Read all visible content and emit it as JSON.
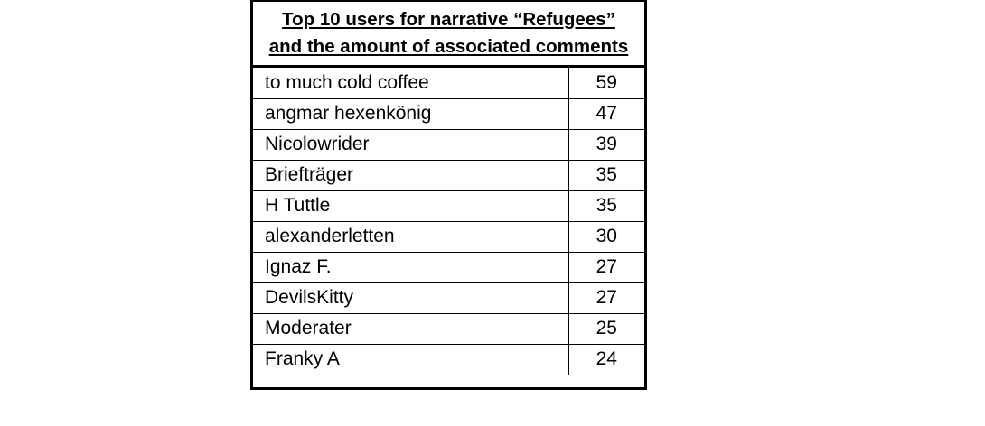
{
  "table": {
    "title_line1": "Top 10 users for narrative “Refugees”",
    "title_line2": "and the amount of associated comments",
    "rows": [
      {
        "user": "to much cold coffee",
        "count": "59"
      },
      {
        "user": "angmar hexenkönig",
        "count": "47"
      },
      {
        "user": "Nicolowrider",
        "count": "39"
      },
      {
        "user": "Briefträger",
        "count": "35"
      },
      {
        "user": "H Tuttle",
        "count": "35"
      },
      {
        "user": "alexanderletten",
        "count": "30"
      },
      {
        "user": "Ignaz F.",
        "count": "27"
      },
      {
        "user": "DevilsKitty",
        "count": "27"
      },
      {
        "user": "Moderater",
        "count": "25"
      },
      {
        "user": "Franky A",
        "count": "24"
      }
    ]
  }
}
